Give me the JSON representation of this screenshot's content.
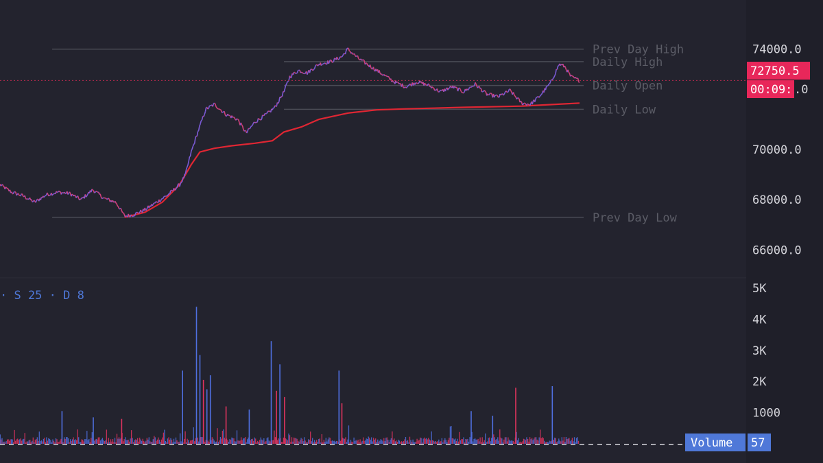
{
  "colors": {
    "background": "#23232e",
    "axis_panel": "#1f1f29",
    "price_line_up": "#7b5bd6",
    "price_line_down": "#d0407a",
    "vwap": "#e02633",
    "level_line": "#4a4b55",
    "level_text": "#5b5c66",
    "last_price_tag": "#e8275a",
    "volume_tag": "#4f78d8",
    "volume_up": "#4f6fe0",
    "volume_down": "#e0335f"
  },
  "indicator_label": "· S 25 · D 8",
  "last_price": {
    "value": "72750.5",
    "countdown": "00:09:",
    "partial_behind": ".0"
  },
  "volume_tag": {
    "label": "Volume",
    "value": "57"
  },
  "levels": [
    {
      "name": "Prev Day High",
      "price": 74000,
      "x_start_frac": 0.09
    },
    {
      "name": "Daily High",
      "price": 73500,
      "x_start_frac": 0.49
    },
    {
      "name": "Daily Open",
      "price": 72550,
      "x_start_frac": 0.49
    },
    {
      "name": "Daily Low",
      "price": 71600,
      "x_start_frac": 0.49
    },
    {
      "name": "Prev Day Low",
      "price": 67300,
      "x_start_frac": 0.09
    }
  ],
  "chart_data": [
    {
      "type": "line",
      "title": "",
      "ylabel": "",
      "ylim": [
        65300,
        75000
      ],
      "y_ticks": [
        "74000.0",
        "70000.0",
        "68000.0",
        "66000.0"
      ],
      "y_tick_values": [
        74000,
        70000,
        68000,
        66000
      ],
      "price_series": [
        [
          0.0,
          68600
        ],
        [
          0.02,
          68300
        ],
        [
          0.04,
          68150
        ],
        [
          0.06,
          67900
        ],
        [
          0.08,
          68200
        ],
        [
          0.1,
          68300
        ],
        [
          0.12,
          68250
        ],
        [
          0.14,
          68000
        ],
        [
          0.16,
          68400
        ],
        [
          0.18,
          68050
        ],
        [
          0.2,
          67900
        ],
        [
          0.215,
          67350
        ],
        [
          0.23,
          67400
        ],
        [
          0.25,
          67600
        ],
        [
          0.27,
          67900
        ],
        [
          0.29,
          68200
        ],
        [
          0.31,
          68600
        ],
        [
          0.32,
          69000
        ],
        [
          0.33,
          69900
        ],
        [
          0.34,
          70600
        ],
        [
          0.355,
          71600
        ],
        [
          0.37,
          71800
        ],
        [
          0.39,
          71400
        ],
        [
          0.41,
          71200
        ],
        [
          0.425,
          70650
        ],
        [
          0.44,
          71100
        ],
        [
          0.46,
          71400
        ],
        [
          0.475,
          71700
        ],
        [
          0.49,
          72300
        ],
        [
          0.5,
          72900
        ],
        [
          0.515,
          73150
        ],
        [
          0.53,
          73050
        ],
        [
          0.55,
          73400
        ],
        [
          0.57,
          73500
        ],
        [
          0.59,
          73700
        ],
        [
          0.6,
          74000
        ],
        [
          0.62,
          73600
        ],
        [
          0.64,
          73300
        ],
        [
          0.66,
          73000
        ],
        [
          0.68,
          72700
        ],
        [
          0.7,
          72500
        ],
        [
          0.72,
          72700
        ],
        [
          0.74,
          72550
        ],
        [
          0.76,
          72300
        ],
        [
          0.78,
          72500
        ],
        [
          0.8,
          72300
        ],
        [
          0.82,
          72600
        ],
        [
          0.84,
          72200
        ],
        [
          0.86,
          72100
        ],
        [
          0.88,
          72350
        ],
        [
          0.9,
          71850
        ],
        [
          0.915,
          71800
        ],
        [
          0.93,
          72100
        ],
        [
          0.95,
          72650
        ],
        [
          0.965,
          73400
        ],
        [
          0.975,
          73300
        ],
        [
          0.985,
          72900
        ],
        [
          1.0,
          72750
        ]
      ],
      "vwap_series": [
        [
          0.215,
          67300
        ],
        [
          0.25,
          67500
        ],
        [
          0.28,
          67900
        ],
        [
          0.31,
          68600
        ],
        [
          0.33,
          69400
        ],
        [
          0.345,
          69900
        ],
        [
          0.37,
          70050
        ],
        [
          0.4,
          70150
        ],
        [
          0.44,
          70250
        ],
        [
          0.47,
          70350
        ],
        [
          0.49,
          70700
        ],
        [
          0.52,
          70900
        ],
        [
          0.55,
          71200
        ],
        [
          0.58,
          71350
        ],
        [
          0.6,
          71450
        ],
        [
          0.65,
          71580
        ],
        [
          0.7,
          71620
        ],
        [
          0.8,
          71680
        ],
        [
          0.9,
          71730
        ],
        [
          0.95,
          71790
        ],
        [
          1.0,
          71850
        ]
      ]
    },
    {
      "type": "bar",
      "title": "",
      "ylabel": "Volume",
      "ylim": [
        0,
        5000
      ],
      "y_ticks": [
        "5K",
        "4K",
        "3K",
        "2K",
        "1000"
      ],
      "y_tick_values": [
        5000,
        4000,
        3000,
        2000,
        1000
      ],
      "spikes": [
        {
          "x": 0.0,
          "value": 300,
          "up": true
        },
        {
          "x": 0.107,
          "value": 1050,
          "up": true
        },
        {
          "x": 0.161,
          "value": 850,
          "up": true
        },
        {
          "x": 0.21,
          "value": 800,
          "up": false
        },
        {
          "x": 0.315,
          "value": 2350,
          "up": true
        },
        {
          "x": 0.339,
          "value": 4400,
          "up": true
        },
        {
          "x": 0.345,
          "value": 2850,
          "up": true
        },
        {
          "x": 0.351,
          "value": 2050,
          "up": false
        },
        {
          "x": 0.357,
          "value": 1750,
          "up": true
        },
        {
          "x": 0.363,
          "value": 2200,
          "up": true
        },
        {
          "x": 0.39,
          "value": 1200,
          "up": false
        },
        {
          "x": 0.43,
          "value": 1100,
          "up": true
        },
        {
          "x": 0.468,
          "value": 3300,
          "up": true
        },
        {
          "x": 0.477,
          "value": 1700,
          "up": false
        },
        {
          "x": 0.483,
          "value": 2550,
          "up": true
        },
        {
          "x": 0.491,
          "value": 1500,
          "up": false
        },
        {
          "x": 0.585,
          "value": 2350,
          "up": true
        },
        {
          "x": 0.59,
          "value": 1300,
          "up": false
        },
        {
          "x": 0.813,
          "value": 1050,
          "up": true
        },
        {
          "x": 0.85,
          "value": 900,
          "up": true
        },
        {
          "x": 0.89,
          "value": 1800,
          "up": false
        },
        {
          "x": 0.953,
          "value": 1850,
          "up": true
        }
      ],
      "last_value": 57
    }
  ]
}
